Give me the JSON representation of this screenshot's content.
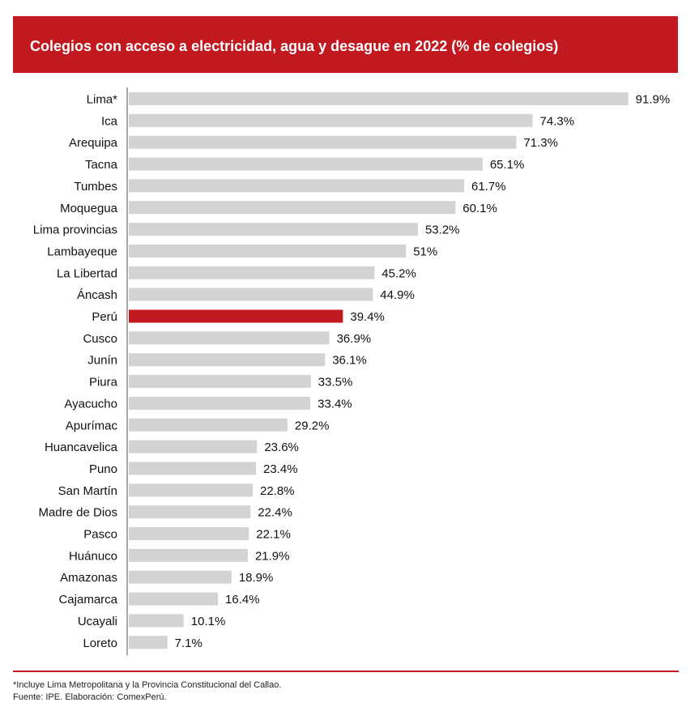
{
  "chart_data": {
    "type": "bar",
    "orientation": "horizontal",
    "title": "Colegios con acceso a electricidad, agua y desague en 2022 (% de colegios)",
    "xlabel": "",
    "ylabel": "",
    "xlim": [
      0,
      100
    ],
    "value_suffix": "%",
    "categories": [
      "Lima*",
      "Ica",
      "Arequipa",
      "Tacna",
      "Tumbes",
      "Moquegua",
      "Lima provincias",
      "Lambayeque",
      "La Libertad",
      "Áncash",
      "Perú",
      "Cusco",
      "Junín",
      "Piura",
      "Ayacucho",
      "Apurímac",
      "Huancavelica",
      "Puno",
      "San Martín",
      "Madre de Dios",
      "Pasco",
      "Huánuco",
      "Amazonas",
      "Cajamarca",
      "Ucayali",
      "Loreto"
    ],
    "values": [
      91.9,
      74.3,
      71.3,
      65.1,
      61.7,
      60.1,
      53.2,
      51,
      45.2,
      44.9,
      39.4,
      36.9,
      36.1,
      33.5,
      33.4,
      29.2,
      23.6,
      23.4,
      22.8,
      22.4,
      22.1,
      21.9,
      18.9,
      16.4,
      10.1,
      7.1
    ],
    "highlight": "Perú",
    "colors": {
      "bar": "#d3d3d3",
      "highlight": "#c1191f",
      "axis": "#8c8c8c",
      "text": "#111111"
    }
  },
  "header": {
    "title": "Colegios con acceso a electricidad, agua y desague en 2022 (% de colegios)"
  },
  "footnotes": {
    "note": "*Incluye Lima Metropolitana y la Provincia Constitucional del Callao.",
    "source": "Fuente: IPE. Elaboración: ComexPerú."
  }
}
